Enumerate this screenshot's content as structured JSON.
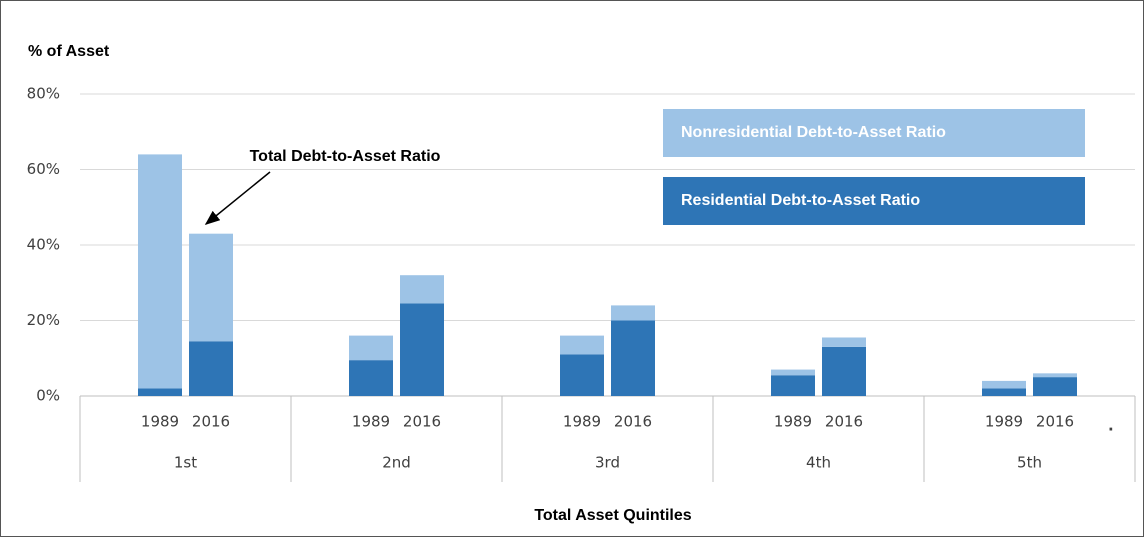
{
  "chart_data": {
    "type": "stacked-bar",
    "y_axis_title": "% of Asset",
    "x_axis_title": "Total Asset Quintiles",
    "annotation": "Total Debt-to-Asset Ratio",
    "trailing_mark": ".",
    "categories": [
      "1989",
      "2016",
      "1989",
      "2016",
      "1989",
      "2016",
      "1989",
      "2016",
      "1989",
      "2016"
    ],
    "groups": [
      "1st",
      "2nd",
      "3rd",
      "4th",
      "5th"
    ],
    "series": [
      {
        "name": "Residential Debt-to-Asset Ratio",
        "color": "#2e75b6",
        "values": [
          2,
          14.5,
          9.5,
          24.5,
          11,
          20,
          5.5,
          13,
          2,
          5
        ]
      },
      {
        "name": "Nonresidential Debt-to-Asset Ratio",
        "color": "#9dc3e6",
        "values": [
          62,
          28.5,
          6.5,
          7.5,
          5,
          4,
          1.5,
          2.5,
          2,
          1
        ]
      }
    ],
    "ylim": [
      0,
      80
    ],
    "yticks": [
      {
        "value": 0,
        "label": "0%"
      },
      {
        "value": 20,
        "label": "20%"
      },
      {
        "value": 40,
        "label": "40%"
      },
      {
        "value": 60,
        "label": "60%"
      },
      {
        "value": 80,
        "label": "80%"
      }
    ],
    "grid": true
  }
}
